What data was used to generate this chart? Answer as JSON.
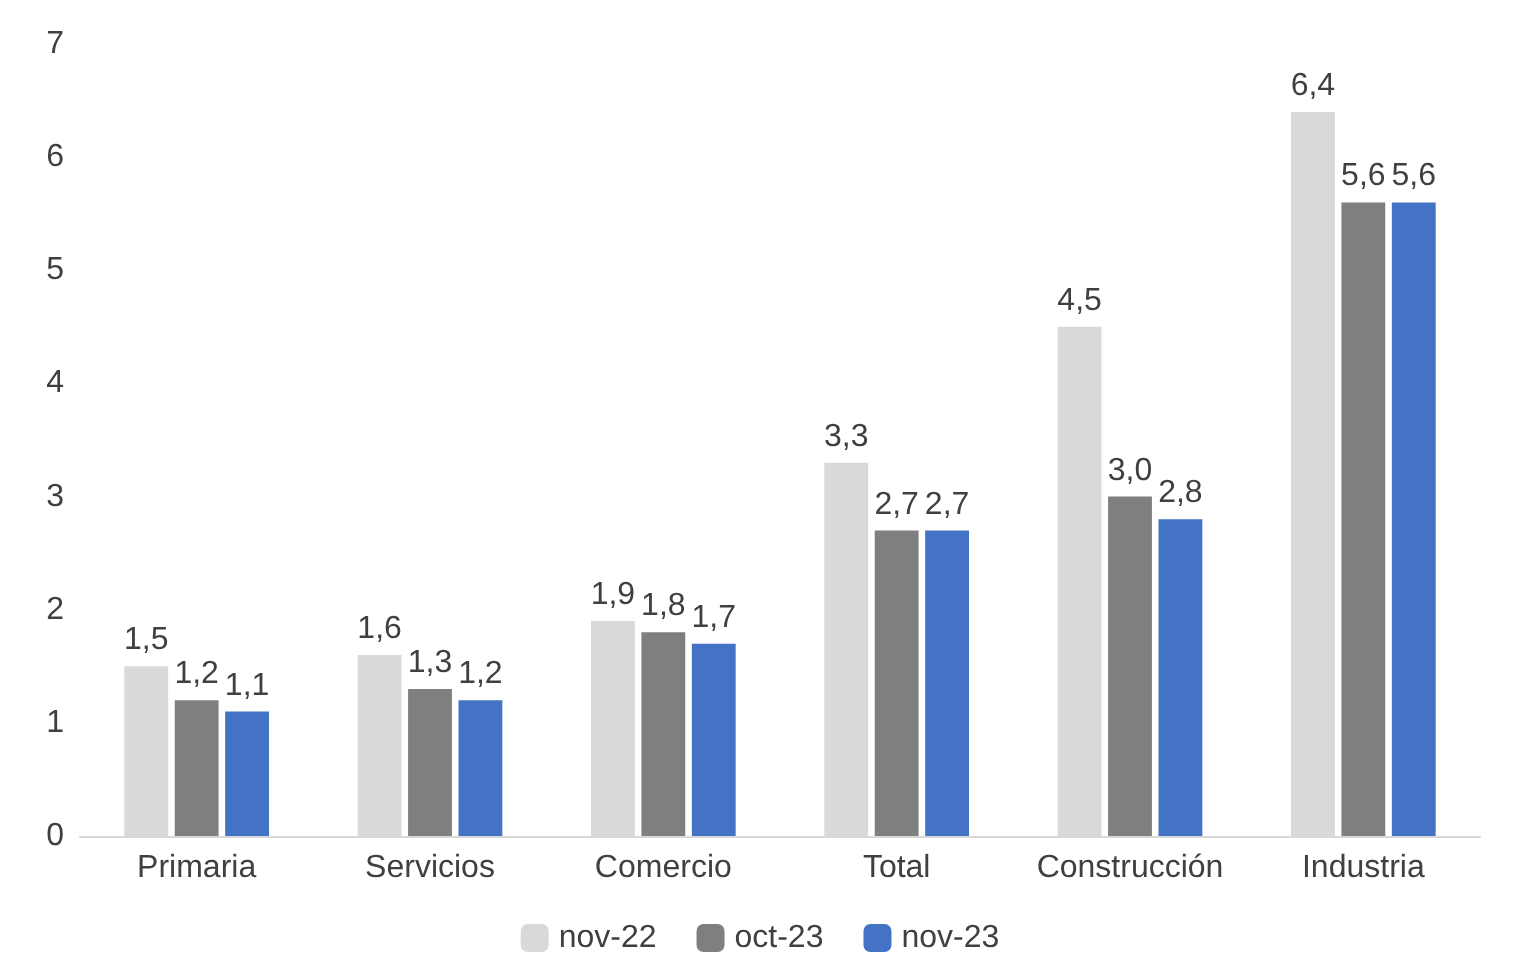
{
  "chart_data": {
    "type": "bar",
    "categories": [
      "Primaria",
      "Servicios",
      "Comercio",
      "Total",
      "Construcción",
      "Industria"
    ],
    "series": [
      {
        "name": "nov-22",
        "color": "#d9d9d9",
        "values": [
          1.5,
          1.6,
          1.9,
          3.3,
          4.5,
          6.4
        ],
        "value_labels": [
          "1,5",
          "1,6",
          "1,9",
          "3,3",
          "4,5",
          "6,4"
        ]
      },
      {
        "name": "oct-23",
        "color": "#7f7f7f",
        "values": [
          1.2,
          1.3,
          1.8,
          2.7,
          3.0,
          5.6
        ],
        "value_labels": [
          "1,2",
          "1,3",
          "1,8",
          "2,7",
          "3,0",
          "5,6"
        ]
      },
      {
        "name": "nov-23",
        "color": "#4472c4",
        "values": [
          1.1,
          1.2,
          1.7,
          2.7,
          2.8,
          5.6
        ],
        "value_labels": [
          "1,1",
          "1,2",
          "1,7",
          "2,7",
          "2,8",
          "5,6"
        ]
      }
    ],
    "ylim": [
      0,
      7
    ],
    "yticks": [
      0,
      1,
      2,
      3,
      4,
      5,
      6,
      7
    ],
    "grid": false,
    "legend": "bottom"
  }
}
